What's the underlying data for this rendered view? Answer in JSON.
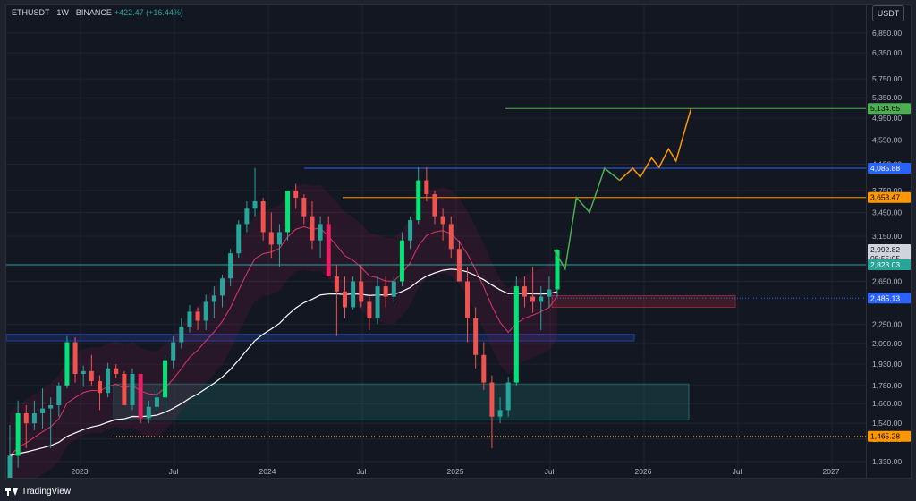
{
  "legend": {
    "symbol": "ETHUSDT · 1W · BINANCE",
    "change": "+422.47 (+16.44%)"
  },
  "currency_button": "USDT",
  "footer": {
    "brand": "TradingView",
    "logo_icon": "tradingview-logo-icon"
  },
  "price_axis": {
    "ticks": [
      "6,850.00",
      "6,350.00",
      "5,750.00",
      "5,350.00",
      "4,950.00",
      "4,550.00",
      "4,150.00",
      "3,750.00",
      "3,450.00",
      "3,150.00",
      "2,650.00",
      "2,250.00",
      "2,090.00",
      "1,930.00",
      "1,780.00",
      "1,660.00",
      "1,540.00",
      "1,450.00",
      "1,330.00"
    ]
  },
  "time_axis": {
    "ticks": [
      "2023",
      "Jul",
      "2024",
      "Jul",
      "2025",
      "Jul",
      "2026",
      "Jul",
      "2027"
    ]
  },
  "price_tags": [
    {
      "label": "5,134.65",
      "color": "#4caf50",
      "text_color": "#000000"
    },
    {
      "label": "4,085.88",
      "color": "#2962ff",
      "text_color": "#ffffff"
    },
    {
      "label": "3,653.47",
      "color": "#ff9800",
      "text_color": "#000000"
    },
    {
      "label": "2,992.82",
      "color": "#d1d4dc",
      "text_color": "#131722"
    },
    {
      "label": "05:55:05",
      "color": "#d1d4dc",
      "text_color": "#131722"
    },
    {
      "label": "2,823.03",
      "color": "#26a69a",
      "text_color": "#ffffff"
    },
    {
      "label": "2,485.13",
      "color": "#2962ff",
      "text_color": "#ffffff"
    },
    {
      "label": "1,465.28",
      "color": "#ff9800",
      "text_color": "#000000"
    }
  ],
  "colors": {
    "up": "#26a69a",
    "down": "#ef5350",
    "up_highlight": "#00e676",
    "down_highlight": "#e91e63",
    "pink_ma": "#d8386b",
    "white_ma": "#ffffff",
    "green_projection": "#4caf50",
    "orange_projection": "#ff9800"
  },
  "chart_data": {
    "type": "candlestick",
    "symbol": "ETHUSDT",
    "interval": "1W",
    "exchange": "BINANCE",
    "last_price": 2992.82,
    "change": 422.47,
    "change_percent": 16.44,
    "candle_countdown": "05:55:05",
    "horizontal_levels": [
      {
        "price": 5134.65,
        "color": "#4caf50",
        "kind": "target"
      },
      {
        "price": 4085.88,
        "color": "#2962ff",
        "kind": "resistance"
      },
      {
        "price": 3653.47,
        "color": "#ff9800",
        "kind": "resistance"
      },
      {
        "price": 2823.03,
        "color": "#26a69a",
        "kind": "level"
      },
      {
        "price": 2485.13,
        "color": "#2962ff",
        "kind": "dotted"
      },
      {
        "price": 1465.28,
        "color": "#ff9800",
        "kind": "dotted"
      }
    ],
    "zones": [
      {
        "from": 2400,
        "to": 2510,
        "color": "#f23645"
      },
      {
        "from": 2110,
        "to": 2165,
        "color": "#2962ff"
      },
      {
        "from": 1560,
        "to": 1790,
        "color": "#26a69a"
      }
    ],
    "projection_green": [
      [
        2025.52,
        2992
      ],
      [
        2025.58,
        2780
      ],
      [
        2025.64,
        3653
      ],
      [
        2025.71,
        3450
      ],
      [
        2025.79,
        4086
      ],
      [
        2025.87,
        3900
      ]
    ],
    "projection_orange": [
      [
        2025.87,
        3900
      ],
      [
        2025.94,
        4086
      ],
      [
        2025.98,
        3950
      ],
      [
        2026.04,
        4250
      ],
      [
        2026.08,
        4100
      ],
      [
        2026.13,
        4400
      ],
      [
        2026.17,
        4200
      ],
      [
        2026.25,
        5134
      ]
    ],
    "candles_ohlc": [
      [
        1195,
        1530,
        1080,
        1360
      ],
      [
        1360,
        1680,
        1300,
        1600
      ],
      [
        1600,
        1650,
        1400,
        1540
      ],
      [
        1540,
        1680,
        1500,
        1600
      ],
      [
        1600,
        1760,
        1510,
        1630
      ],
      [
        1630,
        1700,
        1400,
        1650
      ],
      [
        1650,
        1800,
        1580,
        1780
      ],
      [
        1780,
        2150,
        1760,
        2100
      ],
      [
        2100,
        2140,
        1800,
        1860
      ],
      [
        1860,
        1920,
        1770,
        1880
      ],
      [
        1880,
        2000,
        1780,
        1810
      ],
      [
        1810,
        1850,
        1620,
        1730
      ],
      [
        1730,
        1940,
        1700,
        1900
      ],
      [
        1900,
        1930,
        1830,
        1860
      ],
      [
        1860,
        1880,
        1800,
        1650
      ],
      [
        1650,
        1900,
        1620,
        1860
      ],
      [
        1860,
        1720,
        1540,
        1570
      ],
      [
        1570,
        1680,
        1540,
        1640
      ],
      [
        1640,
        1760,
        1600,
        1700
      ],
      [
        1700,
        2000,
        1600,
        1960
      ],
      [
        1960,
        2150,
        1900,
        2100
      ],
      [
        2100,
        2300,
        2050,
        2230
      ],
      [
        2230,
        2420,
        2180,
        2360
      ],
      [
        2360,
        2400,
        2200,
        2280
      ],
      [
        2280,
        2520,
        2200,
        2450
      ],
      [
        2450,
        2600,
        2300,
        2510
      ],
      [
        2510,
        2720,
        2400,
        2680
      ],
      [
        2680,
        3000,
        2600,
        2950
      ],
      [
        2950,
        3350,
        2900,
        3300
      ],
      [
        3300,
        3600,
        3200,
        3500
      ],
      [
        3500,
        4090,
        3400,
        3600
      ],
      [
        3600,
        3650,
        3100,
        3200
      ],
      [
        3200,
        3450,
        2900,
        3050
      ],
      [
        3050,
        3300,
        2800,
        3200
      ],
      [
        3200,
        3730,
        3100,
        3750
      ],
      [
        3750,
        3850,
        3500,
        3650
      ],
      [
        3650,
        3700,
        3300,
        3400
      ],
      [
        3400,
        3600,
        3000,
        3100
      ],
      [
        3100,
        3400,
        2900,
        3300
      ],
      [
        3300,
        3400,
        2850,
        2700
      ],
      [
        2700,
        2820,
        2150,
        2550
      ],
      [
        2550,
        2700,
        2300,
        2400
      ],
      [
        2400,
        2700,
        2380,
        2650
      ],
      [
        2650,
        2820,
        2400,
        2450
      ],
      [
        2450,
        2500,
        2200,
        2300
      ],
      [
        2300,
        2700,
        2250,
        2600
      ],
      [
        2600,
        2700,
        2400,
        2500
      ],
      [
        2500,
        2700,
        2450,
        2650
      ],
      [
        2650,
        3200,
        2600,
        3100
      ],
      [
        3100,
        3400,
        3000,
        3350
      ],
      [
        3350,
        4100,
        3300,
        3900
      ],
      [
        3900,
        4100,
        3600,
        3700
      ],
      [
        3700,
        3750,
        3300,
        3400
      ],
      [
        3400,
        3500,
        3100,
        3300
      ],
      [
        3300,
        3400,
        2900,
        3000
      ],
      [
        3000,
        3100,
        2700,
        2650
      ],
      [
        2650,
        2800,
        2100,
        2300
      ],
      [
        2300,
        2400,
        1900,
        2000
      ],
      [
        2000,
        2100,
        1750,
        1800
      ],
      [
        1800,
        1850,
        1400,
        1580
      ],
      [
        1580,
        1700,
        1540,
        1620
      ],
      [
        1620,
        1840,
        1580,
        1800
      ],
      [
        1800,
        2700,
        1780,
        2600
      ],
      [
        2600,
        2700,
        2400,
        2500
      ],
      [
        2500,
        2800,
        2350,
        2450
      ],
      [
        2450,
        2600,
        2200,
        2500
      ],
      [
        2500,
        2700,
        2400,
        2570
      ],
      [
        2570,
        3000,
        2500,
        2992.82
      ]
    ]
  }
}
